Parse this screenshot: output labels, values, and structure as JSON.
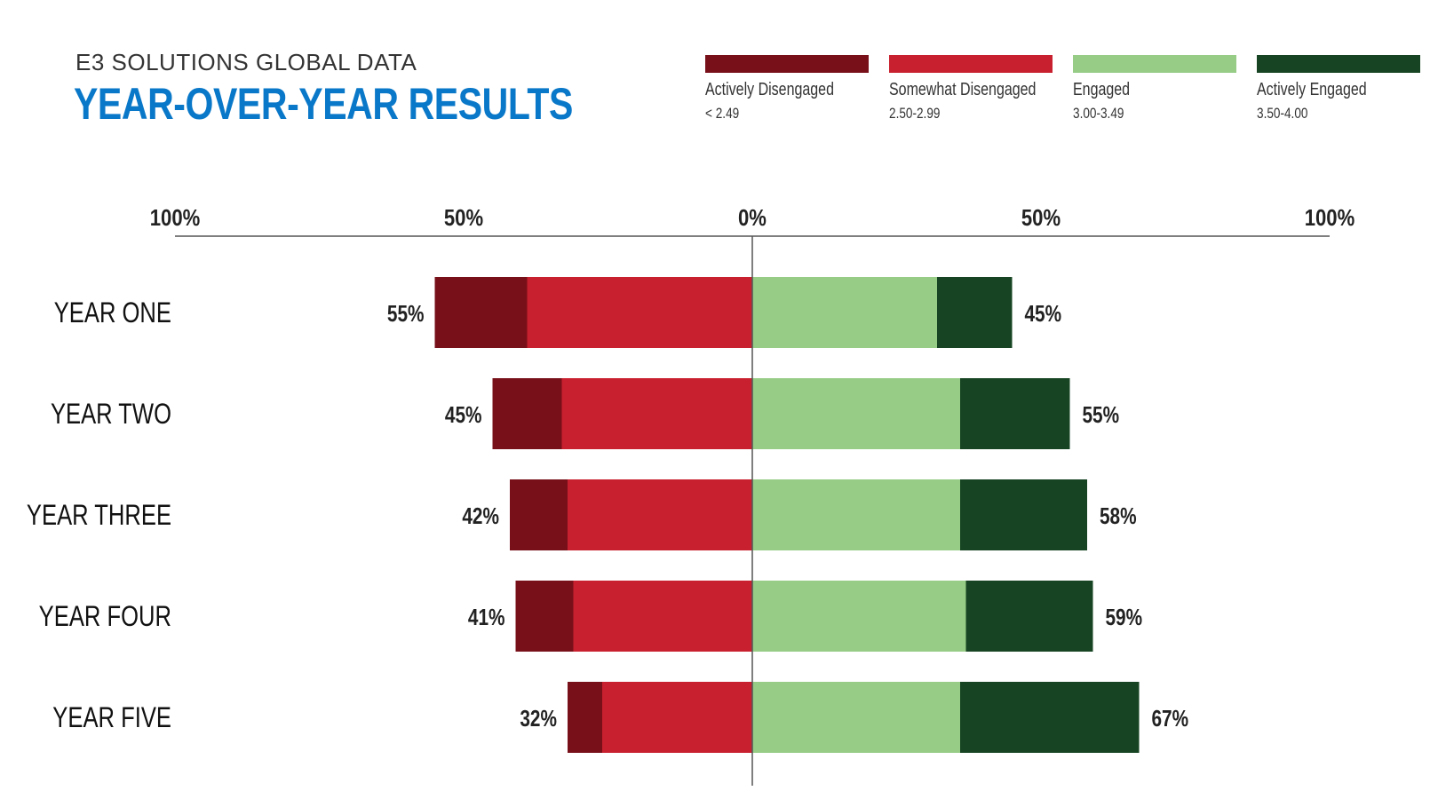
{
  "header": {
    "kicker": "E3 SOLUTIONS GLOBAL DATA",
    "title": "YEAR-OVER-YEAR RESULTS"
  },
  "legend": [
    {
      "label": "Actively Disengaged",
      "range": "< 2.49",
      "color": "#78101a"
    },
    {
      "label": "Somewhat Disengaged",
      "range": "2.50-2.99",
      "color": "#c8202e"
    },
    {
      "label": "Engaged",
      "range": "3.00-3.49",
      "color": "#96cc86"
    },
    {
      "label": "Actively Engaged",
      "range": "3.50-4.00",
      "color": "#174422"
    }
  ],
  "chart_data": {
    "type": "bar",
    "orientation": "horizontal-diverging",
    "title": "YEAR-OVER-YEAR RESULTS",
    "xlim": [
      -100,
      100
    ],
    "axis_ticks": [
      {
        "value": -100,
        "label": "100%"
      },
      {
        "value": -50,
        "label": "50%"
      },
      {
        "value": 0,
        "label": "0%"
      },
      {
        "value": 50,
        "label": "50%"
      },
      {
        "value": 100,
        "label": "100%"
      }
    ],
    "categories": [
      "YEAR ONE",
      "YEAR TWO",
      "YEAR THREE",
      "YEAR FOUR",
      "YEAR FIVE"
    ],
    "series": [
      {
        "name": "Actively Disengaged",
        "side": "negative",
        "values": [
          16,
          12,
          10,
          10,
          6
        ]
      },
      {
        "name": "Somewhat Disengaged",
        "side": "negative",
        "values": [
          39,
          33,
          32,
          31,
          26
        ]
      },
      {
        "name": "Engaged",
        "side": "positive",
        "values": [
          32,
          36,
          36,
          37,
          36
        ]
      },
      {
        "name": "Actively Engaged",
        "side": "positive",
        "values": [
          13,
          19,
          22,
          22,
          31
        ]
      }
    ],
    "totals_negative": [
      "55%",
      "45%",
      "42%",
      "41%",
      "32%"
    ],
    "totals_positive": [
      "45%",
      "55%",
      "58%",
      "59%",
      "67%"
    ]
  }
}
